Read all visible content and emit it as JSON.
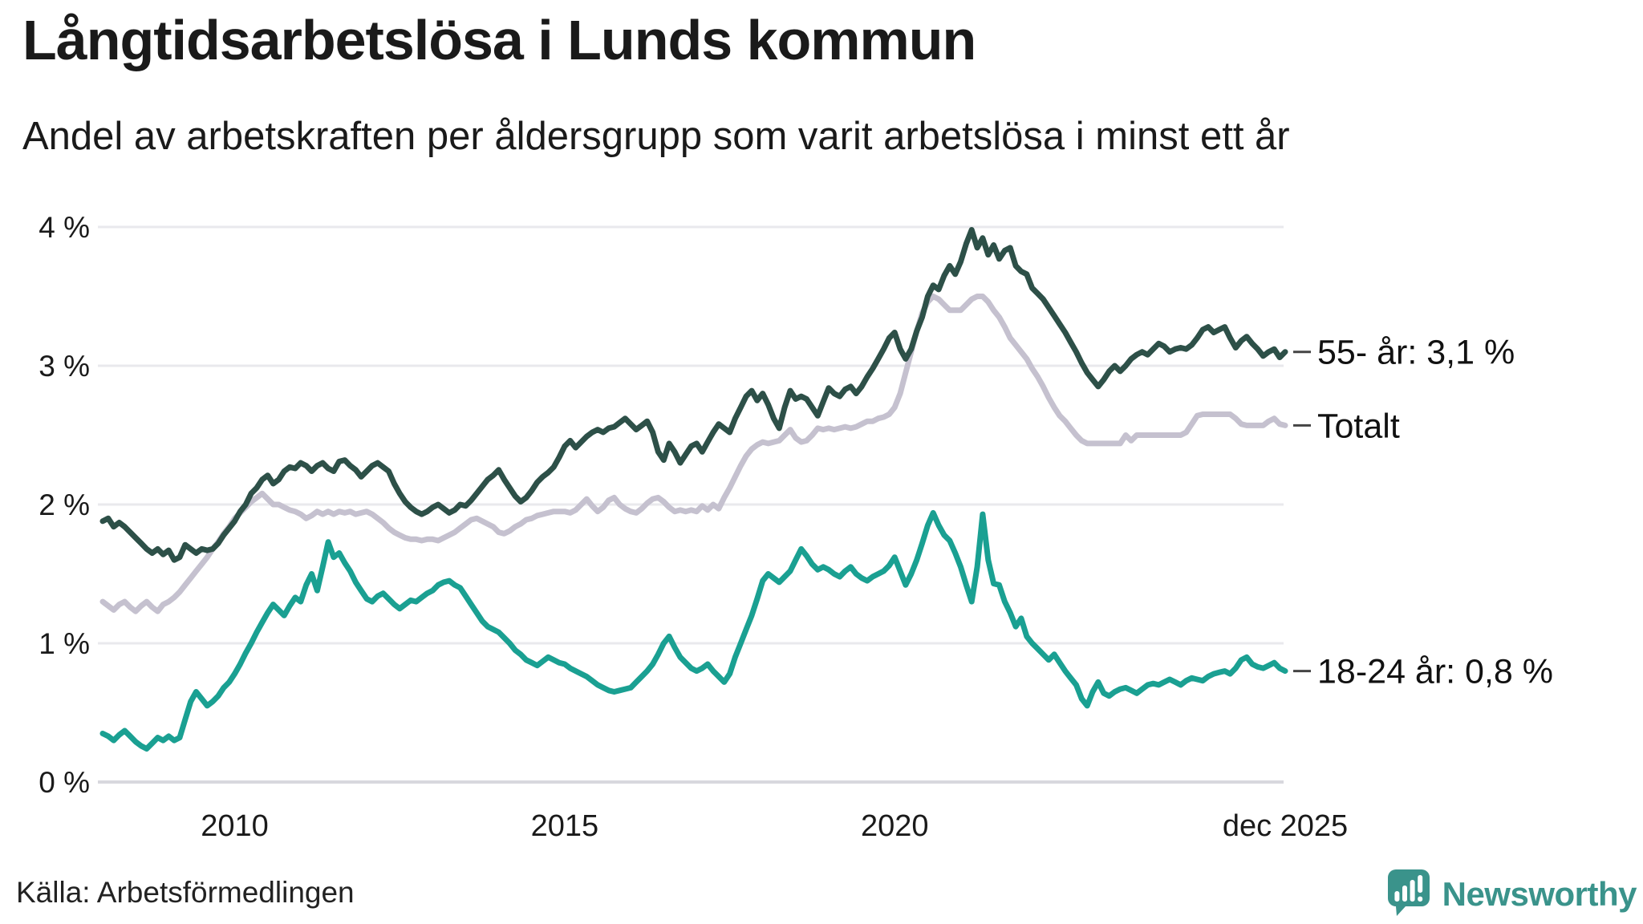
{
  "header": {
    "title": "Långtidsarbetslösa i Lunds kommun",
    "subtitle": "Andel av arbetskraften per åldersgrupp som varit arbetslösa i minst ett år"
  },
  "footer": {
    "source": "Källa: Arbetsförmedlingen",
    "brand": "Newsworthy",
    "brand_icon": "bar-chart-speech-bubble-icon",
    "brand_color": "#3a938b"
  },
  "chart_data": {
    "type": "line",
    "title": "Långtidsarbetslösa i Lunds kommun",
    "subtitle": "Andel av arbetskraften per åldersgrupp som varit arbetslösa i minst ett år",
    "unit": "%",
    "grid": true,
    "legend_position": "end-of-line labels at right",
    "x_axis": {
      "range_years": [
        2008,
        2025.917
      ],
      "ticks": [
        {
          "label": "2010",
          "year": 2010
        },
        {
          "label": "2015",
          "year": 2015
        },
        {
          "label": "2020",
          "year": 2020
        },
        {
          "label": "dec 2025",
          "year": 2025.917
        }
      ]
    },
    "y_axis": {
      "range": [
        0,
        4
      ],
      "ticks": [
        {
          "label": "0 %",
          "value": 0
        },
        {
          "label": "1 %",
          "value": 1
        },
        {
          "label": "2 %",
          "value": 2
        },
        {
          "label": "3 %",
          "value": 3
        },
        {
          "label": "4 %",
          "value": 4
        }
      ]
    },
    "start_year": 2008,
    "points_per_year": 12,
    "colors": {
      "grid": "#e9e9ed",
      "axis": "#d8d8de",
      "text": "#1a1a1a",
      "label_dash": "#444444"
    },
    "series": [
      {
        "id": "55-ar",
        "name": "55- år",
        "end_label": "55- år: 3,1 %",
        "last_value_label": "3,1 %",
        "color": "#2d5048",
        "values": [
          1.88,
          1.9,
          1.84,
          1.87,
          1.84,
          1.8,
          1.76,
          1.72,
          1.68,
          1.65,
          1.68,
          1.64,
          1.67,
          1.6,
          1.62,
          1.71,
          1.68,
          1.65,
          1.68,
          1.67,
          1.68,
          1.72,
          1.78,
          1.83,
          1.88,
          1.95,
          2.0,
          2.08,
          2.12,
          2.18,
          2.21,
          2.15,
          2.18,
          2.24,
          2.27,
          2.26,
          2.3,
          2.28,
          2.24,
          2.28,
          2.3,
          2.26,
          2.24,
          2.31,
          2.32,
          2.28,
          2.25,
          2.2,
          2.24,
          2.28,
          2.3,
          2.27,
          2.24,
          2.15,
          2.08,
          2.02,
          1.98,
          1.95,
          1.93,
          1.95,
          1.98,
          2.0,
          1.97,
          1.94,
          1.96,
          2.0,
          1.99,
          2.03,
          2.08,
          2.13,
          2.18,
          2.21,
          2.25,
          2.18,
          2.12,
          2.06,
          2.02,
          2.05,
          2.1,
          2.16,
          2.2,
          2.23,
          2.27,
          2.34,
          2.42,
          2.46,
          2.41,
          2.45,
          2.49,
          2.52,
          2.54,
          2.52,
          2.55,
          2.56,
          2.59,
          2.62,
          2.58,
          2.54,
          2.57,
          2.6,
          2.52,
          2.38,
          2.32,
          2.44,
          2.38,
          2.3,
          2.36,
          2.42,
          2.44,
          2.38,
          2.45,
          2.52,
          2.58,
          2.55,
          2.52,
          2.62,
          2.7,
          2.78,
          2.82,
          2.75,
          2.8,
          2.72,
          2.62,
          2.55,
          2.7,
          2.82,
          2.76,
          2.78,
          2.76,
          2.7,
          2.64,
          2.74,
          2.84,
          2.8,
          2.78,
          2.83,
          2.85,
          2.8,
          2.85,
          2.92,
          2.98,
          3.05,
          3.12,
          3.2,
          3.24,
          3.12,
          3.05,
          3.12,
          3.25,
          3.35,
          3.5,
          3.58,
          3.55,
          3.65,
          3.72,
          3.66,
          3.75,
          3.88,
          3.98,
          3.85,
          3.92,
          3.8,
          3.87,
          3.77,
          3.83,
          3.85,
          3.72,
          3.68,
          3.66,
          3.56,
          3.52,
          3.48,
          3.42,
          3.36,
          3.3,
          3.24,
          3.17,
          3.1,
          3.02,
          2.95,
          2.9,
          2.85,
          2.9,
          2.96,
          3.0,
          2.96,
          3.0,
          3.05,
          3.08,
          3.1,
          3.08,
          3.12,
          3.16,
          3.14,
          3.1,
          3.12,
          3.13,
          3.12,
          3.15,
          3.2,
          3.26,
          3.28,
          3.24,
          3.26,
          3.28,
          3.2,
          3.13,
          3.18,
          3.21,
          3.16,
          3.12,
          3.07,
          3.1,
          3.12,
          3.06,
          3.1
        ]
      },
      {
        "id": "totalt",
        "name": "Totalt",
        "end_label": "Totalt",
        "last_value_label": "2,6 %",
        "color": "#c5c1cf",
        "values": [
          1.3,
          1.27,
          1.24,
          1.28,
          1.3,
          1.26,
          1.23,
          1.27,
          1.3,
          1.26,
          1.23,
          1.28,
          1.3,
          1.33,
          1.37,
          1.42,
          1.47,
          1.52,
          1.57,
          1.62,
          1.68,
          1.73,
          1.79,
          1.84,
          1.9,
          1.94,
          1.98,
          2.02,
          2.05,
          2.08,
          2.04,
          2.0,
          2.0,
          1.98,
          1.96,
          1.95,
          1.93,
          1.9,
          1.92,
          1.95,
          1.93,
          1.95,
          1.93,
          1.95,
          1.94,
          1.95,
          1.93,
          1.94,
          1.95,
          1.93,
          1.9,
          1.87,
          1.83,
          1.8,
          1.78,
          1.76,
          1.75,
          1.75,
          1.74,
          1.75,
          1.75,
          1.74,
          1.76,
          1.78,
          1.8,
          1.83,
          1.86,
          1.89,
          1.9,
          1.88,
          1.86,
          1.84,
          1.8,
          1.79,
          1.81,
          1.84,
          1.86,
          1.89,
          1.9,
          1.92,
          1.93,
          1.94,
          1.95,
          1.95,
          1.95,
          1.94,
          1.96,
          2.0,
          2.04,
          1.99,
          1.95,
          1.98,
          2.03,
          2.05,
          2.0,
          1.97,
          1.95,
          1.94,
          1.97,
          2.01,
          2.04,
          2.05,
          2.02,
          1.98,
          1.95,
          1.96,
          1.95,
          1.96,
          1.95,
          1.99,
          1.96,
          2.0,
          1.97,
          2.05,
          2.12,
          2.2,
          2.28,
          2.35,
          2.4,
          2.43,
          2.45,
          2.44,
          2.45,
          2.46,
          2.5,
          2.54,
          2.48,
          2.45,
          2.46,
          2.5,
          2.55,
          2.54,
          2.55,
          2.54,
          2.55,
          2.56,
          2.55,
          2.56,
          2.58,
          2.6,
          2.6,
          2.62,
          2.63,
          2.65,
          2.7,
          2.8,
          2.95,
          3.1,
          3.25,
          3.38,
          3.46,
          3.5,
          3.48,
          3.44,
          3.4,
          3.4,
          3.4,
          3.44,
          3.48,
          3.5,
          3.5,
          3.46,
          3.4,
          3.35,
          3.28,
          3.2,
          3.15,
          3.1,
          3.05,
          2.98,
          2.92,
          2.85,
          2.77,
          2.7,
          2.64,
          2.6,
          2.55,
          2.5,
          2.46,
          2.44,
          2.44,
          2.44,
          2.44,
          2.44,
          2.44,
          2.44,
          2.5,
          2.46,
          2.5,
          2.5,
          2.5,
          2.5,
          2.5,
          2.5,
          2.5,
          2.5,
          2.5,
          2.52,
          2.58,
          2.64,
          2.65,
          2.65,
          2.65,
          2.65,
          2.65,
          2.65,
          2.62,
          2.58,
          2.57,
          2.57,
          2.57,
          2.57,
          2.6,
          2.62,
          2.58,
          2.57
        ]
      },
      {
        "id": "18-24-ar",
        "name": "18-24 år",
        "end_label": "18-24 år: 0,8 %",
        "last_value_label": "0,8 %",
        "color": "#1aa092",
        "values": [
          0.35,
          0.33,
          0.3,
          0.34,
          0.37,
          0.33,
          0.29,
          0.26,
          0.24,
          0.28,
          0.32,
          0.3,
          0.33,
          0.3,
          0.32,
          0.45,
          0.58,
          0.65,
          0.6,
          0.55,
          0.58,
          0.62,
          0.68,
          0.72,
          0.78,
          0.85,
          0.93,
          1.0,
          1.08,
          1.15,
          1.22,
          1.28,
          1.24,
          1.2,
          1.27,
          1.33,
          1.3,
          1.42,
          1.5,
          1.38,
          1.55,
          1.73,
          1.62,
          1.65,
          1.58,
          1.52,
          1.44,
          1.38,
          1.32,
          1.3,
          1.34,
          1.36,
          1.32,
          1.28,
          1.25,
          1.28,
          1.31,
          1.3,
          1.33,
          1.36,
          1.38,
          1.42,
          1.44,
          1.45,
          1.42,
          1.4,
          1.34,
          1.28,
          1.22,
          1.16,
          1.12,
          1.1,
          1.08,
          1.04,
          1.0,
          0.95,
          0.92,
          0.88,
          0.86,
          0.84,
          0.87,
          0.9,
          0.88,
          0.86,
          0.85,
          0.82,
          0.8,
          0.78,
          0.76,
          0.73,
          0.7,
          0.68,
          0.66,
          0.65,
          0.66,
          0.67,
          0.68,
          0.72,
          0.76,
          0.8,
          0.85,
          0.92,
          1.0,
          1.05,
          0.97,
          0.9,
          0.86,
          0.82,
          0.8,
          0.82,
          0.85,
          0.8,
          0.76,
          0.72,
          0.78,
          0.9,
          1.0,
          1.1,
          1.2,
          1.32,
          1.45,
          1.5,
          1.47,
          1.44,
          1.48,
          1.52,
          1.6,
          1.68,
          1.63,
          1.57,
          1.53,
          1.55,
          1.53,
          1.5,
          1.48,
          1.52,
          1.55,
          1.5,
          1.47,
          1.45,
          1.48,
          1.5,
          1.52,
          1.56,
          1.62,
          1.52,
          1.42,
          1.5,
          1.6,
          1.72,
          1.85,
          1.94,
          1.85,
          1.78,
          1.74,
          1.65,
          1.55,
          1.42,
          1.3,
          1.55,
          1.93,
          1.6,
          1.43,
          1.42,
          1.3,
          1.22,
          1.12,
          1.18,
          1.05,
          1.0,
          0.96,
          0.92,
          0.88,
          0.92,
          0.86,
          0.8,
          0.75,
          0.7,
          0.6,
          0.55,
          0.65,
          0.72,
          0.64,
          0.62,
          0.65,
          0.67,
          0.68,
          0.66,
          0.64,
          0.67,
          0.7,
          0.71,
          0.7,
          0.72,
          0.74,
          0.72,
          0.7,
          0.73,
          0.75,
          0.74,
          0.73,
          0.76,
          0.78,
          0.79,
          0.8,
          0.78,
          0.82,
          0.88,
          0.9,
          0.85,
          0.83,
          0.82,
          0.84,
          0.86,
          0.82,
          0.8
        ]
      }
    ]
  }
}
